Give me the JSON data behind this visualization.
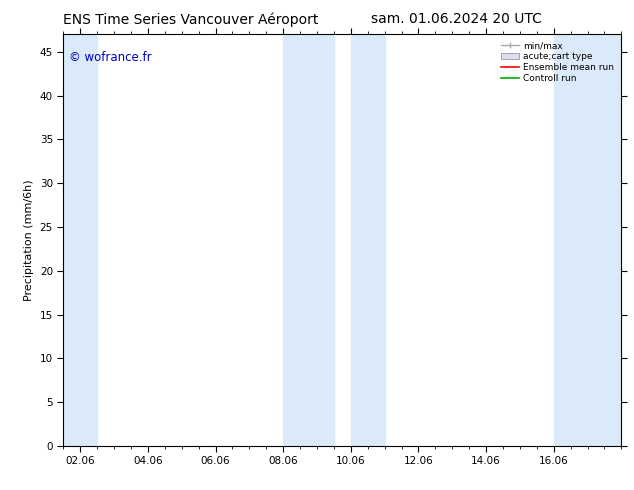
{
  "title_left": "ENS Time Series Vancouver Aéroport",
  "title_right": "sam. 01.06.2024 20 UTC",
  "ylabel": "Precipitation (mm/6h)",
  "watermark": "© wofrance.fr",
  "xlim": [
    0,
    16.5
  ],
  "ylim": [
    0,
    47
  ],
  "yticks": [
    0,
    5,
    10,
    15,
    20,
    25,
    30,
    35,
    40,
    45
  ],
  "xtick_labels": [
    "02.06",
    "04.06",
    "06.06",
    "08.06",
    "10.06",
    "12.06",
    "14.06",
    "16.06"
  ],
  "xtick_positions": [
    0.5,
    2.5,
    4.5,
    6.5,
    8.5,
    10.5,
    12.5,
    14.5
  ],
  "background_color": "#ffffff",
  "plot_bg_color": "#ffffff",
  "shade_color": "#daeaf8",
  "shade_regions": [
    [
      0.0,
      1.0
    ],
    [
      6.5,
      8.0
    ],
    [
      8.5,
      9.5
    ],
    [
      14.5,
      16.5
    ]
  ],
  "legend_labels": [
    "min/max",
    "acute;cart type",
    "Ensemble mean run",
    "Controll run"
  ],
  "title_fontsize": 10,
  "axis_fontsize": 8,
  "tick_fontsize": 7.5,
  "watermark_color": "#0000cc",
  "watermark_fontsize": 8.5
}
